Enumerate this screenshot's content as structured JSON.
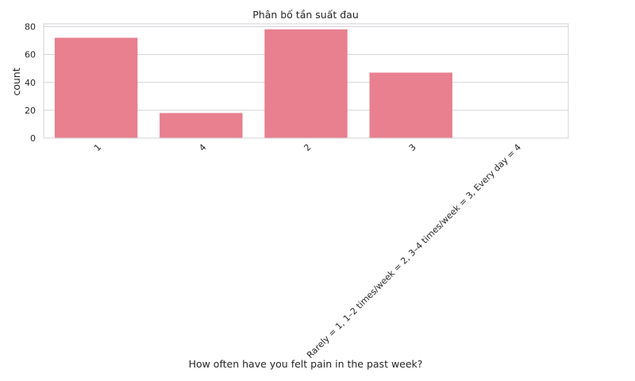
{
  "chart_data": {
    "type": "bar",
    "title": "Phân bố tần suất đau",
    "xlabel": "How often have you felt pain in the past week?",
    "ylabel": "count",
    "categories": [
      "1",
      "4",
      "2",
      "3",
      "Rarely = 1, 1–2 times/week = 2, 3–4 times/week = 3, Every day = 4"
    ],
    "values": [
      72,
      18,
      78,
      47,
      0
    ],
    "ylim": [
      0,
      82
    ],
    "yticks": [
      "0",
      "20",
      "40",
      "60",
      "80"
    ],
    "grid": true,
    "bar_color": "#e8808f",
    "grid_color": "#d3d3d9"
  }
}
